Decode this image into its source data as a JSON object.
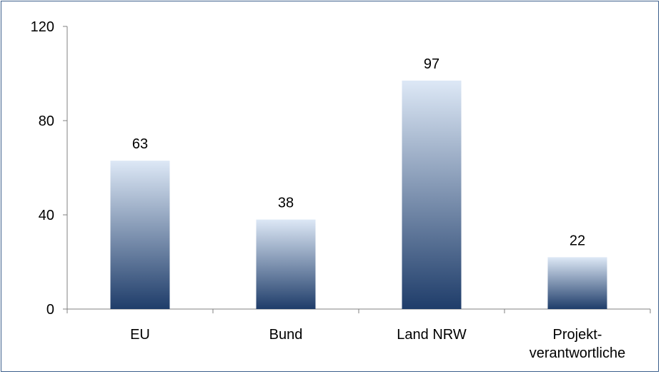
{
  "chart_data": {
    "type": "bar",
    "title": "",
    "xlabel": "",
    "ylabel": "",
    "categories": [
      "EU",
      "Bund",
      "Land NRW",
      [
        "Projekt-",
        "verantwortliche"
      ]
    ],
    "values": [
      63,
      38,
      97,
      22
    ],
    "ylim": [
      0,
      120
    ],
    "yticks": [
      0,
      40,
      80,
      120
    ],
    "grid": false,
    "legend": "none",
    "data_labels": true,
    "bar_gradient": {
      "top": "#dde8f6",
      "bottom": "#1f3d6a"
    },
    "axis_color": "#808080",
    "frame_color": "#3c5f8c"
  }
}
